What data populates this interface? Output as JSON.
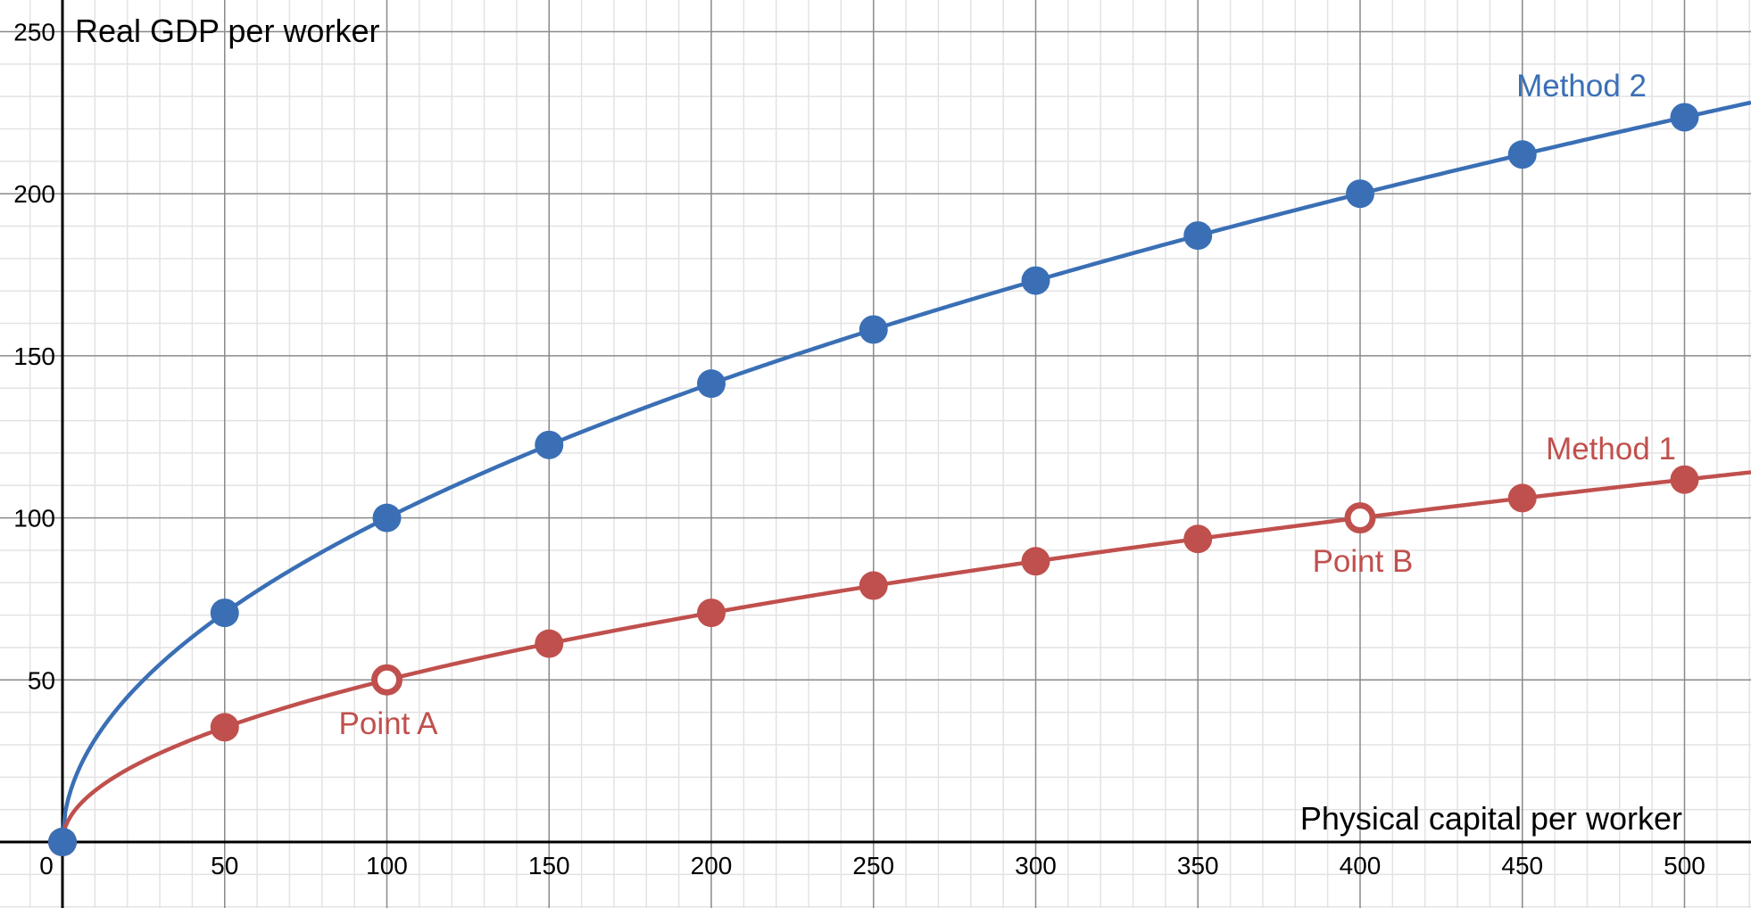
{
  "chart_data": {
    "type": "line",
    "title": "",
    "xlabel": "Physical capital per worker",
    "ylabel": "Real GDP per worker",
    "xlim": [
      0,
      520
    ],
    "ylim": [
      0,
      250
    ],
    "grid": true,
    "x_ticks": [
      "0",
      "50",
      "100",
      "150",
      "200",
      "250",
      "300",
      "350",
      "400",
      "450",
      "500"
    ],
    "y_ticks": [
      "50",
      "100",
      "150",
      "200",
      "250"
    ],
    "series": [
      {
        "name": "Method 2",
        "color": "#3a6fb5",
        "formula": "y = 10 * sqrt(x)",
        "x": [
          0,
          50,
          100,
          150,
          200,
          250,
          300,
          350,
          400,
          450,
          500
        ],
        "y": [
          0,
          70.7,
          100,
          122.5,
          141.4,
          158.1,
          173.2,
          187.1,
          200,
          212.1,
          223.6
        ]
      },
      {
        "name": "Method 1",
        "color": "#c0504d",
        "formula": "y = 5 * sqrt(x)",
        "x": [
          0,
          50,
          100,
          150,
          200,
          250,
          300,
          350,
          400,
          450,
          500
        ],
        "y": [
          0,
          35.4,
          50,
          61.2,
          70.7,
          79.1,
          86.6,
          93.5,
          100,
          106.1,
          111.8
        ]
      }
    ],
    "annotations": [
      {
        "text": "Point A",
        "x": 100,
        "y": 50,
        "series": "Method 1",
        "marker": "hollow"
      },
      {
        "text": "Point B",
        "x": 400,
        "y": 100,
        "series": "Method 1",
        "marker": "hollow"
      }
    ]
  }
}
